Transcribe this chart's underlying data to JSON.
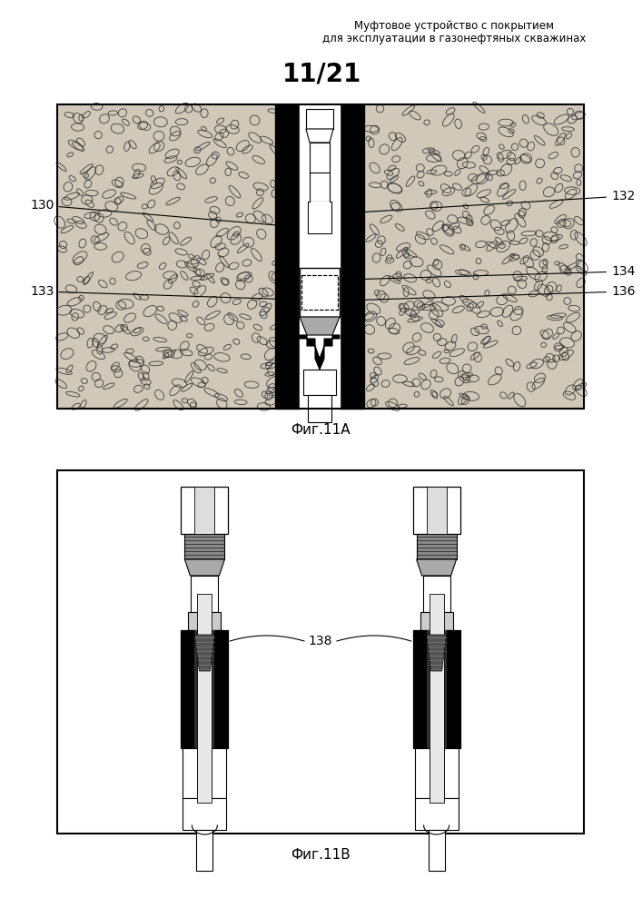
{
  "header_line1": "Муфтовое устройство с покрытием",
  "header_line2": "для эксплуатации в газонефтяных скважинах",
  "page_label": "11/21",
  "fig_a_caption": "Фиг.11А",
  "fig_b_caption": "Фиг.11В",
  "bg_color": "#ffffff",
  "text_color": "#000000",
  "rocky_color": "#d0c8b8",
  "header_fontsize": 8.5,
  "page_label_fontsize": 20,
  "caption_fontsize": 11,
  "label_fontsize": 10
}
